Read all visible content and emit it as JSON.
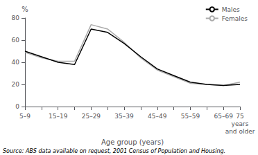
{
  "chart_data": {
    "type": "line",
    "categories": [
      "5–9",
      null,
      "15–19",
      null,
      "25–29",
      null,
      "35–39",
      null,
      "45–49",
      null,
      "55–59",
      null,
      "65–69",
      "75\nyears\nand older"
    ],
    "series": [
      {
        "name": "Males",
        "color": "#000000",
        "values": [
          50,
          45,
          40,
          38,
          70,
          67,
          57,
          45,
          34,
          28,
          22,
          20,
          19,
          20
        ]
      },
      {
        "name": "Females",
        "color": "#aaaaaa",
        "values": [
          49,
          44,
          41,
          41,
          74,
          70,
          58,
          44,
          33,
          27,
          21,
          20,
          19,
          22
        ]
      }
    ],
    "ylim": [
      0,
      80
    ],
    "yticks": [
      0,
      20,
      40,
      60,
      80
    ],
    "ylabel": "%",
    "xlabel": "Age group (years)",
    "annotations": [
      "Source: ABS data available on request, 2001 Census of Population and Housing."
    ],
    "legend": "upper right",
    "grid": false
  }
}
